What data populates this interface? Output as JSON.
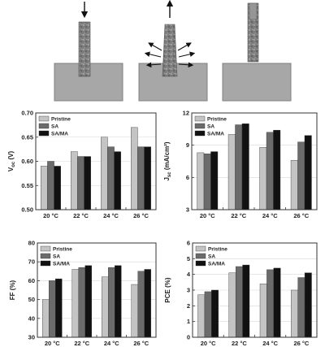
{
  "schematic": {
    "stages": [
      {
        "arrow": "down",
        "arrow_color": "#111111"
      },
      {
        "arrow": "up",
        "arrow_color": "#111111",
        "side_arrows": true
      },
      {
        "arrow": "none"
      }
    ],
    "colors": {
      "substrate": "#a7a7a7",
      "substrate_edge": "#808080",
      "pillar": "#7a7a7a"
    }
  },
  "legend_labels": [
    "Pristine",
    "SA",
    "SA/MA"
  ],
  "colors": {
    "Pristine": "#c4c4c4",
    "SA": "#6b6b6b",
    "SA/MA": "#111111"
  },
  "chart_data": [
    {
      "type": "bar",
      "ylabel_base": "V",
      "ylabel_sub": "oc",
      "ylabel_unit": " (V)",
      "categories": [
        "20 °C",
        "22 °C",
        "24 °C",
        "26 °C"
      ],
      "ylim": [
        0.5,
        0.7
      ],
      "yticks": [
        "0.50",
        "0.55",
        "0.60",
        "0.65",
        "0.70"
      ],
      "grid": true,
      "legend": "top-left",
      "series": [
        {
          "name": "Pristine",
          "values": [
            0.59,
            0.62,
            0.65,
            0.67
          ]
        },
        {
          "name": "SA",
          "values": [
            0.6,
            0.61,
            0.63,
            0.63
          ]
        },
        {
          "name": "SA/MA",
          "values": [
            0.59,
            0.61,
            0.62,
            0.63
          ]
        }
      ]
    },
    {
      "type": "bar",
      "ylabel_base": "J",
      "ylabel_sub": "sc",
      "ylabel_unit": " (mA/cm²)",
      "categories": [
        "20 °C",
        "22 °C",
        "24 °C",
        "26 °C"
      ],
      "ylim": [
        3,
        12
      ],
      "yticks": [
        "3",
        "6",
        "9",
        "12"
      ],
      "grid": true,
      "legend": "top-left",
      "series": [
        {
          "name": "Pristine",
          "values": [
            8.3,
            10.0,
            8.8,
            7.6
          ]
        },
        {
          "name": "SA",
          "values": [
            8.2,
            10.9,
            10.2,
            9.3
          ]
        },
        {
          "name": "SA/MA",
          "values": [
            8.4,
            11.0,
            10.4,
            9.9
          ]
        }
      ]
    },
    {
      "type": "bar",
      "ylabel_base": "FF (%)",
      "ylabel_sub": "",
      "ylabel_unit": "",
      "categories": [
        "20 °C",
        "22 °C",
        "24 °C",
        "26 °C"
      ],
      "ylim": [
        30,
        80
      ],
      "yticks": [
        "30",
        "40",
        "50",
        "60",
        "70",
        "80"
      ],
      "grid": true,
      "legend": "top-left",
      "series": [
        {
          "name": "Pristine",
          "values": [
            50,
            66,
            62,
            58
          ]
        },
        {
          "name": "SA",
          "values": [
            60,
            67,
            67,
            65
          ]
        },
        {
          "name": "SA/MA",
          "values": [
            61,
            68,
            68,
            66
          ]
        }
      ]
    },
    {
      "type": "bar",
      "ylabel_base": "PCE (%)",
      "ylabel_sub": "",
      "ylabel_unit": "",
      "categories": [
        "20 °C",
        "22 °C",
        "24 °C",
        "26 °C"
      ],
      "ylim": [
        0,
        6
      ],
      "yticks": [
        "0",
        "1",
        "2",
        "3",
        "4",
        "5",
        "6"
      ],
      "grid": true,
      "legend": "top-left",
      "series": [
        {
          "name": "Pristine",
          "values": [
            2.7,
            4.1,
            3.4,
            3.0
          ]
        },
        {
          "name": "SA",
          "values": [
            2.9,
            4.5,
            4.3,
            3.8
          ]
        },
        {
          "name": "SA/MA",
          "values": [
            3.0,
            4.6,
            4.4,
            4.1
          ]
        }
      ]
    }
  ]
}
